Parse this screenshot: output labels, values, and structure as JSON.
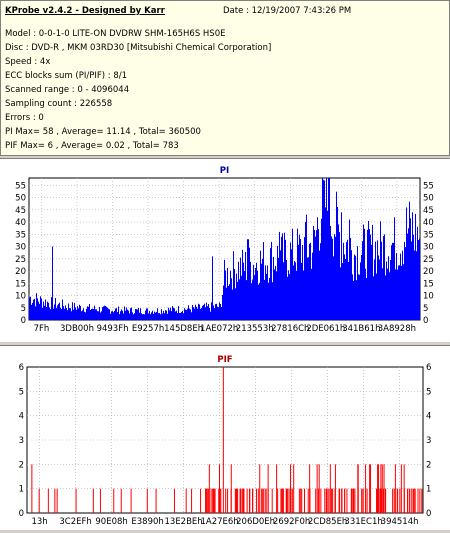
{
  "header": {
    "title": "KProbe v2.4.2 - Designed by Karr",
    "date": "Date : 12/19/2007 7:43:26 PM",
    "lines": [
      "Model : 0-0-1-0 LITE-ON DVDRW SHM-165H6S HS0E",
      "Disc : DVD-R , MKM 03RD30  [Mitsubishi Chemical Corporation]",
      "Speed : 4x",
      "ECC blocks sum (PI/PIF) : 8/1",
      "Scanned range : 0 - 4096044",
      "Sampling count : 226558",
      "Errors : 0",
      "PI Max= 58 , Average= 11.14 , Total= 360500",
      "PIF Max= 6 , Average= 0.02 , Total= 783"
    ]
  },
  "chart_data": [
    {
      "type": "area",
      "title": "PI",
      "ylim": [
        0,
        58
      ],
      "yticks": [
        0,
        5,
        10,
        15,
        20,
        25,
        30,
        35,
        40,
        45,
        50,
        55
      ],
      "xticks": [
        "7Fh",
        "3DB00h",
        "9493Fh",
        "E9257h",
        "145D8Eh",
        "1AE072h",
        "213553h",
        "27816Ch",
        "2DE061h",
        "341B61h",
        "3A8928h"
      ],
      "grid": true,
      "color": "#0000ff",
      "profile_x": [
        0,
        0.04,
        0.1,
        0.2,
        0.3,
        0.42,
        0.49,
        0.5,
        0.52,
        0.6,
        0.67,
        0.7,
        0.73,
        0.74,
        0.75,
        0.76,
        0.77,
        0.8,
        0.82,
        0.83,
        0.86,
        0.9,
        0.95,
        0.97,
        1.0
      ],
      "profile_y": [
        10,
        8,
        6,
        4.5,
        4,
        5,
        6,
        19,
        22,
        26,
        29,
        31,
        33,
        44,
        51,
        52,
        48,
        35,
        33,
        29,
        31,
        32,
        34,
        40,
        37
      ],
      "spikes": [
        [
          0.06,
          30
        ],
        [
          0.47,
          26
        ],
        [
          0.56,
          33
        ],
        [
          0.64,
          36
        ],
        [
          0.71,
          43
        ],
        [
          0.755,
          57
        ],
        [
          0.765,
          58
        ],
        [
          0.8,
          44
        ],
        [
          0.82,
          41
        ],
        [
          0.965,
          46
        ],
        [
          0.98,
          44
        ]
      ]
    },
    {
      "type": "bar",
      "title": "PIF",
      "ylim": [
        0,
        6
      ],
      "yticks": [
        0,
        1,
        2,
        3,
        4,
        5,
        6
      ],
      "xticks": [
        "13h",
        "3C2EFh",
        "90E08h",
        "E3890h",
        "13E2BEh",
        "1A27E6h",
        "206D0Eh",
        "2692F0h",
        "2CD85Eh",
        "331EC1h",
        "394514h"
      ],
      "grid": true,
      "color": "#ff0000",
      "peak": {
        "x": 0.5,
        "y": 6
      },
      "bars": [
        [
          0.01,
          2
        ],
        [
          0.03,
          1
        ],
        [
          0.05,
          1
        ],
        [
          0.07,
          1
        ],
        [
          0.08,
          1
        ],
        [
          0.12,
          1
        ],
        [
          0.17,
          1
        ],
        [
          0.19,
          1
        ],
        [
          0.22,
          1
        ],
        [
          0.24,
          1
        ],
        [
          0.26,
          1
        ],
        [
          0.3,
          1
        ],
        [
          0.33,
          1
        ],
        [
          0.37,
          1
        ],
        [
          0.4,
          1
        ],
        [
          0.42,
          1
        ],
        [
          0.44,
          1
        ],
        [
          0.46,
          1
        ],
        [
          0.47,
          1
        ],
        [
          0.48,
          1
        ],
        [
          0.5,
          6
        ],
        [
          0.51,
          1
        ],
        [
          0.52,
          2
        ],
        [
          0.53,
          1
        ],
        [
          0.55,
          1
        ],
        [
          0.56,
          1
        ],
        [
          0.58,
          1
        ],
        [
          0.6,
          1
        ],
        [
          0.61,
          2
        ],
        [
          0.63,
          1
        ],
        [
          0.64,
          1
        ],
        [
          0.66,
          1
        ],
        [
          0.67,
          1
        ],
        [
          0.69,
          1
        ],
        [
          0.7,
          1
        ],
        [
          0.71,
          1
        ],
        [
          0.73,
          1
        ],
        [
          0.74,
          2
        ],
        [
          0.76,
          1
        ],
        [
          0.77,
          1
        ],
        [
          0.79,
          1
        ],
        [
          0.8,
          1
        ],
        [
          0.82,
          1
        ],
        [
          0.84,
          2
        ],
        [
          0.85,
          1
        ],
        [
          0.86,
          1
        ],
        [
          0.88,
          1
        ],
        [
          0.89,
          1
        ],
        [
          0.9,
          2
        ],
        [
          0.91,
          1
        ],
        [
          0.93,
          1
        ],
        [
          0.94,
          1
        ],
        [
          0.95,
          2
        ],
        [
          0.96,
          1
        ],
        [
          0.97,
          1
        ],
        [
          0.98,
          1
        ],
        [
          0.99,
          1
        ]
      ]
    }
  ]
}
